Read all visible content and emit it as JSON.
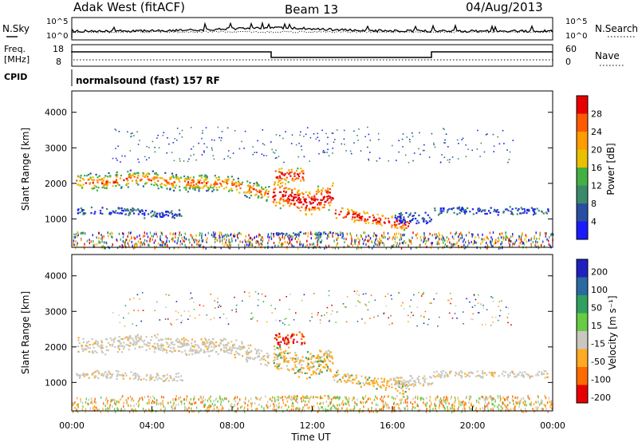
{
  "header": {
    "station": "Adak West (fitACF)",
    "beam": "Beam 13",
    "date": "04/Aug/2013"
  },
  "noise_panel": {
    "left_label": "N.Sky",
    "right_label": "N.Search",
    "left_ticks": [
      "10^5",
      "10^0"
    ],
    "right_ticks": [
      "10^5",
      "10^0"
    ]
  },
  "freq_panel": {
    "left_label_top": "Freq.",
    "left_label_bottom": "[MHz]",
    "right_label": "Nave",
    "left_ticks": [
      "18",
      "8"
    ],
    "right_ticks": [
      "60",
      "0"
    ],
    "cpid_label": "CPID",
    "cpid_text": "normalsound (fast) 157 RF"
  },
  "chart_data": [
    {
      "type": "heatmap",
      "name": "power",
      "ylabel": "Slant Range [km]",
      "ylim": [
        200,
        4600
      ],
      "y_ticks": [
        "1000",
        "2000",
        "3000",
        "4000"
      ],
      "colorbar_label": "Power [dB]",
      "colorbar_ticks": [
        "4",
        "8",
        "12",
        "16",
        "20",
        "24",
        "28"
      ],
      "colors": [
        "#1a1aff",
        "#2a4fa0",
        "#3a8a6a",
        "#44b044",
        "#e8c000",
        "#ff9c00",
        "#ff5a00",
        "#e60000"
      ],
      "grid": false
    },
    {
      "type": "heatmap",
      "name": "velocity",
      "ylabel": "Slant Range [km]",
      "xlabel": "Time UT",
      "ylim": [
        200,
        4600
      ],
      "y_ticks": [
        "1000",
        "2000",
        "3000",
        "4000"
      ],
      "x_ticks": [
        "00:00",
        "04:00",
        "08:00",
        "12:00",
        "16:00",
        "20:00",
        "00:00"
      ],
      "colorbar_label": "Velocity [m s⁻¹]",
      "colorbar_ticks": [
        "200",
        "100",
        "50",
        "15",
        "-15",
        "-50",
        "-100",
        "-200"
      ],
      "colors": [
        "#2020c0",
        "#2a6aa0",
        "#30a060",
        "#66cc44",
        "#c8c8c0",
        "#ffaa22",
        "#ff6a00",
        "#e60000"
      ],
      "grid": false
    }
  ]
}
